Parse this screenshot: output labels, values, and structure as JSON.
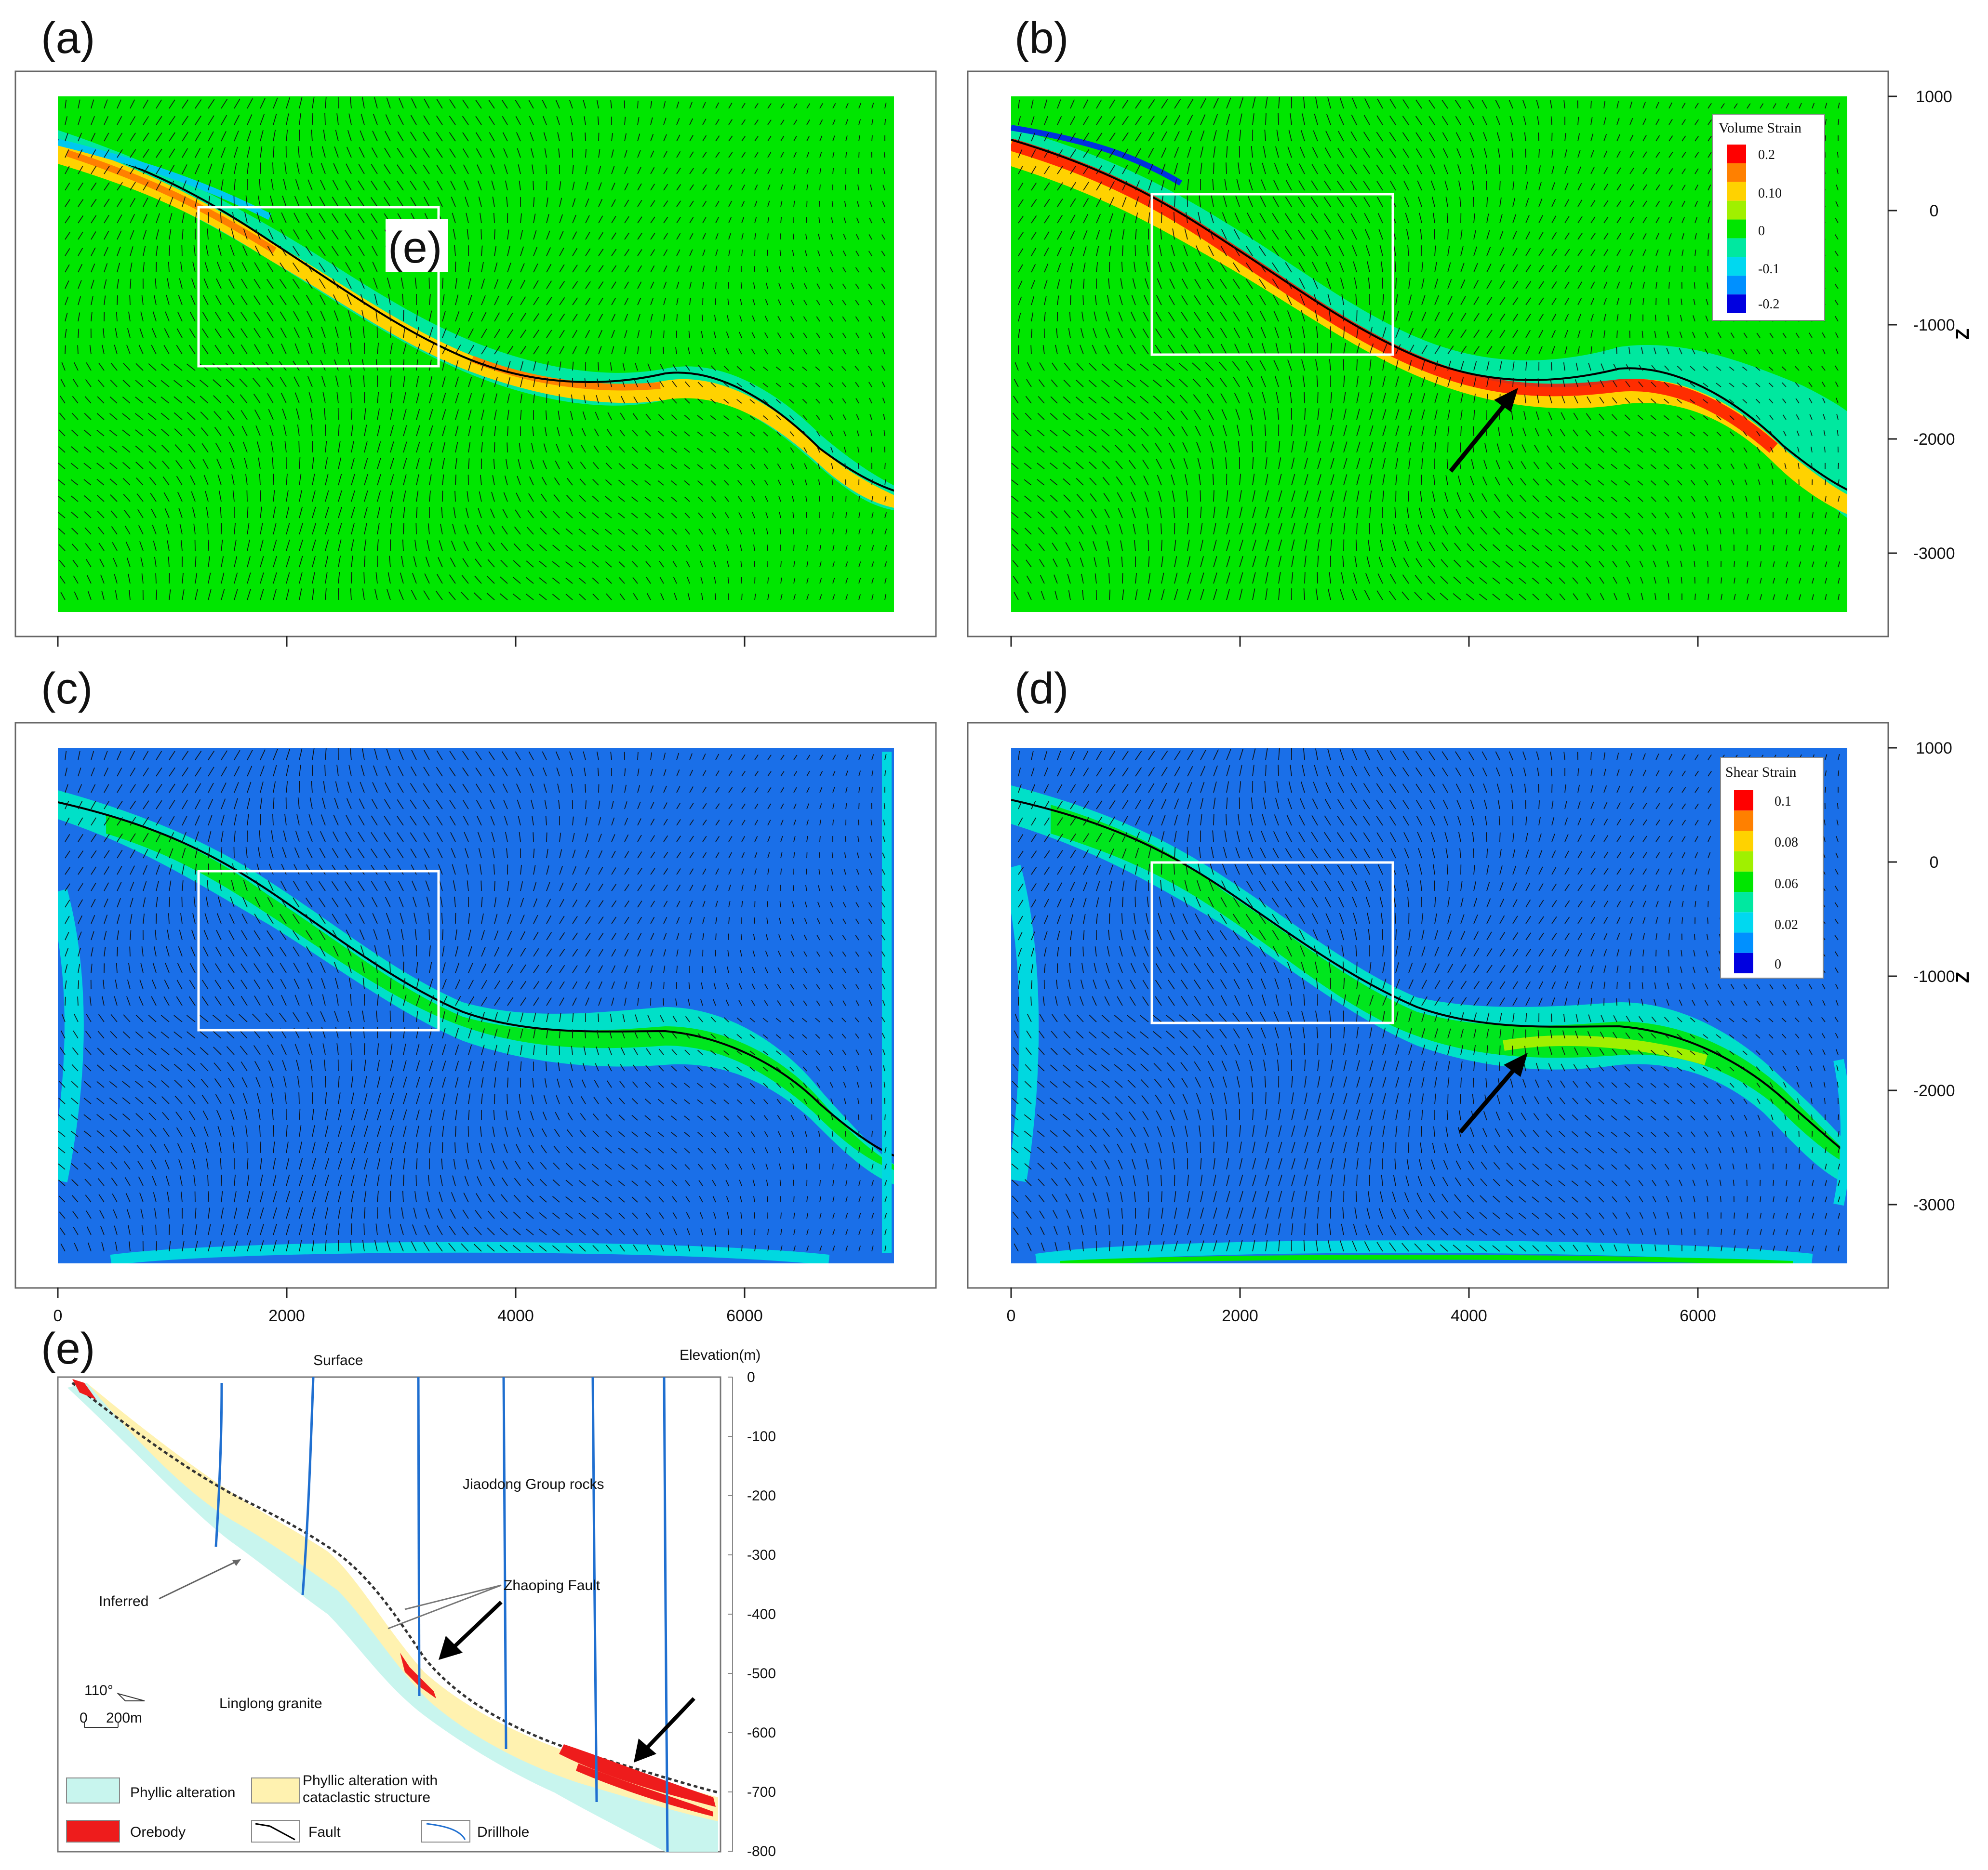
{
  "panel_labels": [
    "(a)",
    "(b)",
    "(c)",
    "(d)",
    "(e)"
  ],
  "inset_label": "(e)",
  "x_axis": {
    "ticks": [
      "0",
      "2000",
      "4000",
      "6000"
    ]
  },
  "z_axis": {
    "label": "Z",
    "ticks": [
      "1000",
      "0",
      "-1000",
      "-2000",
      "-3000"
    ]
  },
  "volume_legend": {
    "title": "Volume Strain",
    "labels": [
      "0.2",
      "0.10",
      "0",
      "-0.1",
      "-0.2"
    ],
    "colors": [
      "#ff0000",
      "#ff8000",
      "#ffd200",
      "#a0f000",
      "#00e600",
      "#00e8a0",
      "#00d8f0",
      "#0090ff",
      "#0000e0"
    ]
  },
  "shear_legend": {
    "title": "Shear Strain",
    "labels": [
      "0.1",
      "0.08",
      "0.06",
      "0.02",
      "0"
    ],
    "colors": [
      "#ff0000",
      "#ff8000",
      "#ffd200",
      "#a0f000",
      "#00e600",
      "#00e8a0",
      "#00d8f0",
      "#0090ff",
      "#0000e0"
    ]
  },
  "panel_e": {
    "surface": "Surface",
    "elevation_label": "Elevation(m)",
    "elevation_ticks": [
      "0",
      "-100",
      "-200",
      "-300",
      "-400",
      "-500",
      "-600",
      "-700",
      "-800"
    ],
    "jiaodong": "Jiaodong Group rocks",
    "linglong": "Linglong granite",
    "inferred": "Inferred",
    "zhaoping": "Zhaoping Fault",
    "orientation": "110°",
    "scale_zero": "0",
    "scale_len": "200m",
    "legend": {
      "phyllic": "Phyllic alteration",
      "phyllic_cat_1": "Phyllic alteration with",
      "phyllic_cat_2": "cataclastic structure",
      "orebody": "Orebody",
      "fault": "Fault",
      "drillhole": "Drillhole"
    }
  },
  "colors": {
    "volume_bg": "#00e600",
    "shear_bg": "#1a6fe8",
    "phyllic": "#c8f5ee",
    "cataclastic": "#fff2b0",
    "orebody": "#ee1c1c",
    "drillhole": "#1f6fd0"
  }
}
